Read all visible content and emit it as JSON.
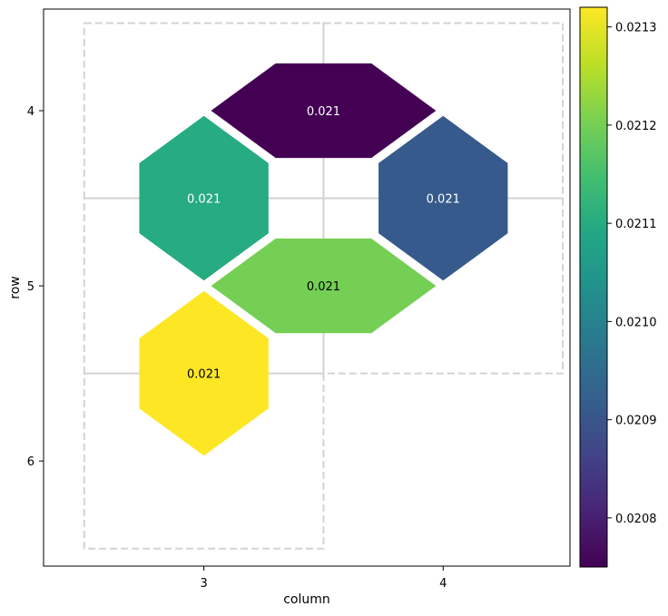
{
  "chart_data": {
    "type": "heatmap",
    "layout": "hexagonal",
    "title": "",
    "xlabel": "column",
    "ylabel": "row",
    "x_ticks": [
      3,
      4
    ],
    "y_ticks": [
      4,
      5,
      6
    ],
    "y_inverted": true,
    "colormap": "viridis",
    "colorbar": {
      "min": 0.02075,
      "max": 0.02132,
      "ticks": [
        "0.0208",
        "0.0209",
        "0.0210",
        "0.0211",
        "0.0212",
        "0.0213"
      ],
      "tick_values": [
        0.0208,
        0.0209,
        0.021,
        0.0211,
        0.0212,
        0.0213
      ]
    },
    "cells": [
      {
        "label": "0.021",
        "value": 0.02075,
        "row": 4,
        "column": 3.5,
        "shape": "wide",
        "text_color": "#ffffff"
      },
      {
        "label": "0.021",
        "value": 0.0211,
        "row": 4.5,
        "column": 3,
        "shape": "tall",
        "text_color": "#ffffff"
      },
      {
        "label": "0.021",
        "value": 0.02091,
        "row": 4.5,
        "column": 4,
        "shape": "tall",
        "text_color": "#ffffff"
      },
      {
        "label": "0.021",
        "value": 0.0212,
        "row": 5,
        "column": 3.5,
        "shape": "wide",
        "text_color": "#000000"
      },
      {
        "label": "0.021",
        "value": 0.02132,
        "row": 5.5,
        "column": 3,
        "shape": "tall",
        "text_color": "#000000"
      }
    ],
    "outline_rects": [
      {
        "col_min": 2.5,
        "col_max": 3.5,
        "row_min": 3.5,
        "row_max": 4.5
      },
      {
        "col_min": 3.5,
        "col_max": 4.5,
        "row_min": 3.5,
        "row_max": 4.5
      },
      {
        "col_min": 2.5,
        "col_max": 3.5,
        "row_min": 4.5,
        "row_max": 5.5
      },
      {
        "col_min": 3.5,
        "col_max": 4.5,
        "row_min": 4.5,
        "row_max": 5.5
      },
      {
        "col_min": 2.5,
        "col_max": 3.5,
        "row_min": 5.5,
        "row_max": 6.5
      }
    ],
    "xlim": [
      2.33,
      4.53
    ],
    "ylim": [
      3.42,
      6.6
    ],
    "grid": false
  }
}
